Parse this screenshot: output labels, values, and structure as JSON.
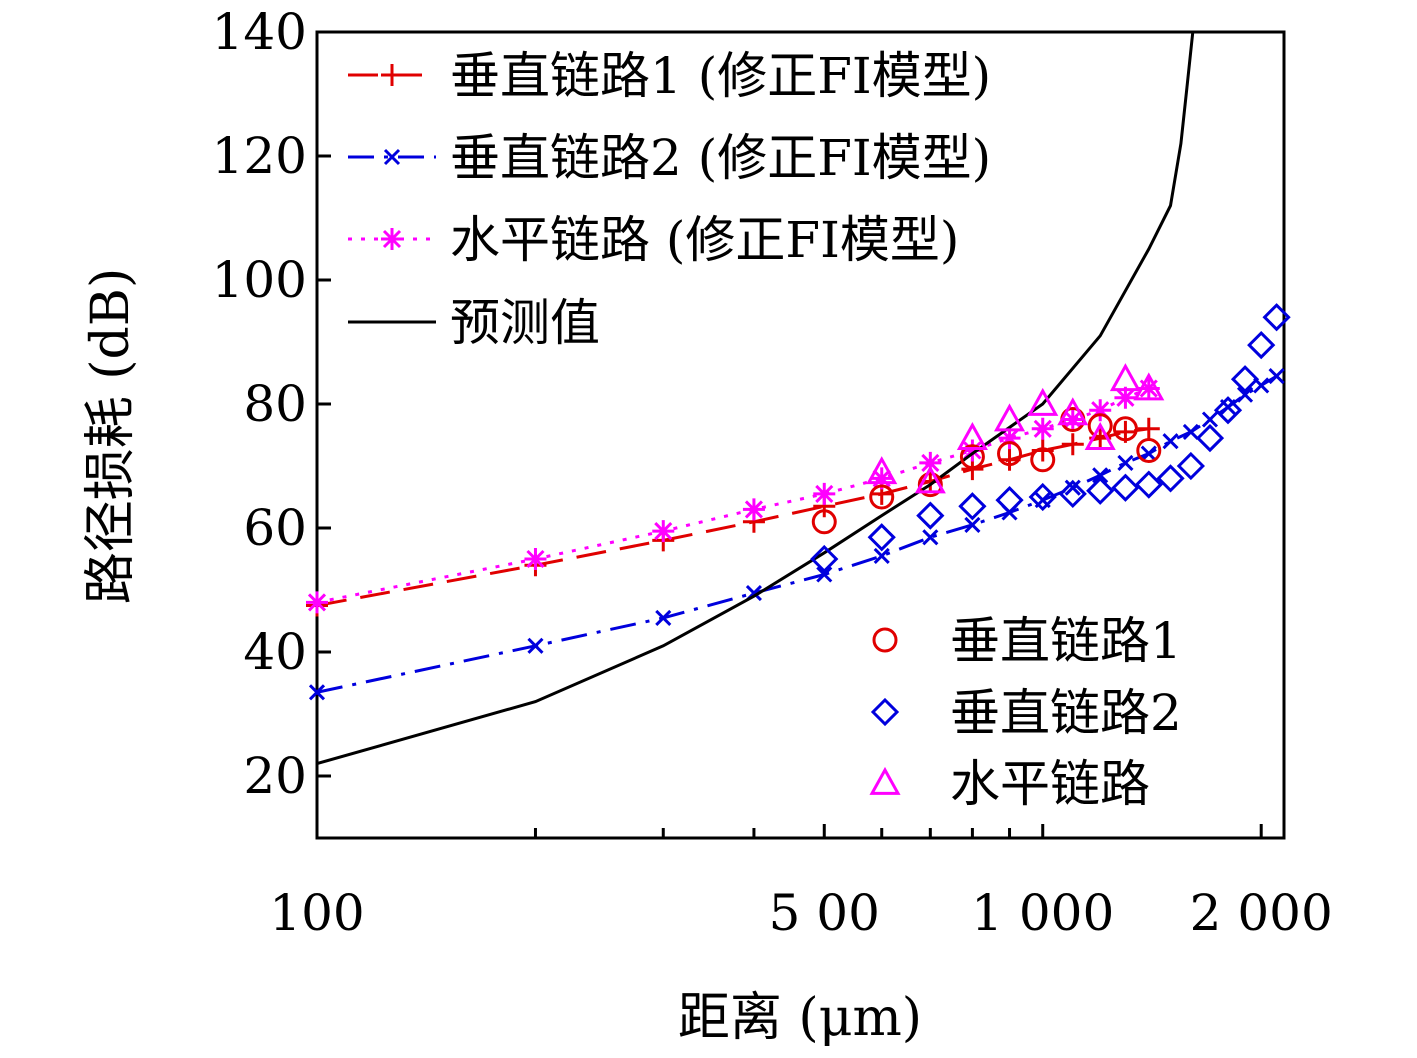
{
  "chart_data": {
    "type": "scatter",
    "xlabel": "距离 (μm)",
    "ylabel": "路径损耗 (dB)",
    "xscale": "log",
    "xlim": [
      100,
      2150
    ],
    "ylim": [
      10,
      140
    ],
    "xticks_labeled": [
      {
        "value": 100,
        "label": "100"
      },
      {
        "value": 500,
        "label": "5 00"
      },
      {
        "value": 1000,
        "label": "1 000"
      },
      {
        "value": 2000,
        "label": "2 000"
      }
    ],
    "xticks_minor": [
      200,
      300,
      400,
      600,
      700,
      800,
      900
    ],
    "yticks": [
      {
        "value": 20,
        "label": "20"
      },
      {
        "value": 40,
        "label": "40"
      },
      {
        "value": 60,
        "label": "60"
      },
      {
        "value": 80,
        "label": "80"
      },
      {
        "value": 100,
        "label": "100"
      },
      {
        "value": 120,
        "label": "120"
      },
      {
        "value": 140,
        "label": "140"
      }
    ],
    "grid": false,
    "legend_lines_position": "top-left",
    "legend_markers_position": "bottom-right",
    "line_series": [
      {
        "name": "垂直链路1 (修正FI模型)",
        "color": "#e00000",
        "dash": "long-dash",
        "marker": "plus",
        "x": [
          100,
          200,
          300,
          400,
          500,
          600,
          700,
          800,
          900,
          1000,
          1100,
          1200,
          1300,
          1400
        ],
        "y": [
          47.5,
          54,
          58,
          61,
          63.5,
          65.5,
          67.5,
          69.5,
          71,
          72.5,
          73.5,
          74.5,
          75.5,
          76
        ]
      },
      {
        "name": "垂直链路2 (修正FI模型)",
        "color": "#0000dd",
        "dash": "dash-dot",
        "marker": "x",
        "x": [
          100,
          200,
          300,
          400,
          500,
          600,
          700,
          800,
          900,
          1000,
          1100,
          1200,
          1300,
          1400,
          1500,
          1600,
          1700,
          1800,
          1900,
          2000,
          2100
        ],
        "y": [
          33.5,
          41,
          45.5,
          49.5,
          52.5,
          55.5,
          58.5,
          60.5,
          62.5,
          64.5,
          66.5,
          68.5,
          70.5,
          72,
          74,
          75.5,
          77.5,
          79.5,
          81.5,
          83,
          84.5
        ]
      },
      {
        "name": "水平链路 (修正FI模型)",
        "color": "#ff00ff",
        "dash": "dotted",
        "marker": "asterisk",
        "x": [
          100,
          200,
          300,
          400,
          500,
          600,
          700,
          800,
          900,
          1000,
          1100,
          1200,
          1300,
          1400
        ],
        "y": [
          48,
          55,
          59.5,
          63,
          65.5,
          68,
          70.5,
          72.5,
          74.5,
          76,
          77.5,
          79,
          81,
          82.5
        ]
      },
      {
        "name": "预测值",
        "color": "#000000",
        "dash": "solid",
        "marker": "none",
        "x": [
          100,
          200,
          300,
          400,
          500,
          600,
          700,
          800,
          1000,
          1200,
          1400,
          1500,
          1550,
          1580,
          1610
        ],
        "y": [
          22,
          32,
          41,
          49,
          56,
          62,
          67,
          72,
          80,
          91,
          105,
          112,
          122,
          131,
          140
        ]
      }
    ],
    "marker_series": [
      {
        "name": "垂直链路1",
        "color": "#e00000",
        "marker": "circle",
        "x": [
          500,
          600,
          700,
          800,
          900,
          1000,
          1100,
          1200,
          1300,
          1400
        ],
        "y": [
          61,
          65,
          67,
          71.5,
          72,
          71,
          77.5,
          76.5,
          76,
          72.5
        ]
      },
      {
        "name": "垂直链路2",
        "color": "#0000dd",
        "marker": "diamond",
        "x": [
          500,
          600,
          700,
          800,
          900,
          1000,
          1100,
          1200,
          1300,
          1400,
          1500,
          1600,
          1700,
          1800,
          1900,
          2000,
          2100
        ],
        "y": [
          55,
          58.5,
          62,
          63.5,
          64.5,
          65,
          65.5,
          66,
          66.5,
          67,
          68,
          70,
          74.5,
          79,
          84,
          89.5,
          94
        ]
      },
      {
        "name": "水平链路",
        "color": "#ff00ff",
        "marker": "triangle",
        "x": [
          600,
          700,
          800,
          900,
          1000,
          1100,
          1200,
          1300,
          1400
        ],
        "y": [
          69,
          67.5,
          74.5,
          77.5,
          80,
          78.5,
          74.5,
          84,
          82.5
        ]
      }
    ]
  }
}
